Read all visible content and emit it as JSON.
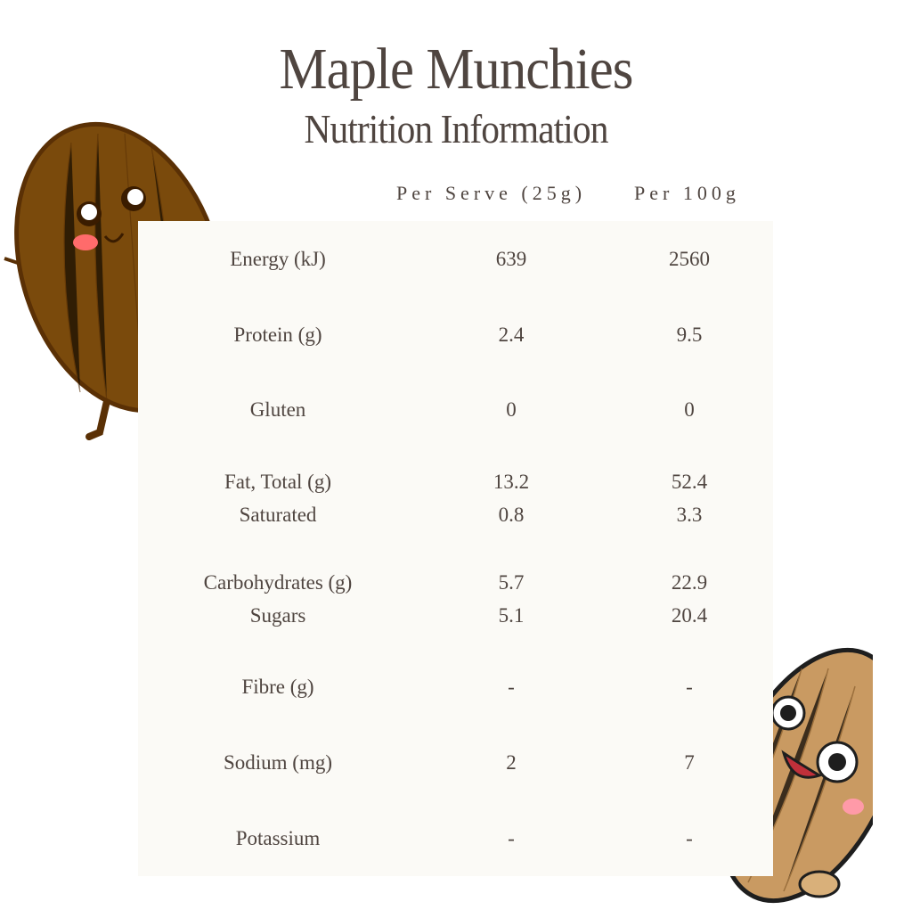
{
  "header": {
    "title": "Maple Munchies",
    "subtitle": "Nutrition Information"
  },
  "columns": {
    "per_serve": "Per Serve (25g)",
    "per_100g": "Per 100g"
  },
  "rows": [
    {
      "label": "Energy (kJ)",
      "per_serve": "639",
      "per_100g": "2560"
    },
    {
      "label": "Protein (g)",
      "per_serve": "2.4",
      "per_100g": "9.5"
    },
    {
      "label": "Gluten",
      "per_serve": "0",
      "per_100g": "0"
    },
    {
      "label": "Fat, Total (g)",
      "per_serve": "13.2",
      "per_100g": "52.4"
    },
    {
      "label": "Saturated",
      "per_serve": "0.8",
      "per_100g": "3.3"
    },
    {
      "label": "Carbohydrates (g)",
      "per_serve": "5.7",
      "per_100g": "22.9"
    },
    {
      "label": "Sugars",
      "per_serve": "5.1",
      "per_100g": "20.4"
    },
    {
      "label": "Fibre (g)",
      "per_serve": "-",
      "per_100g": "-"
    },
    {
      "label": "Sodium (mg)",
      "per_serve": "2",
      "per_100g": "7"
    },
    {
      "label": "Potassium",
      "per_serve": "-",
      "per_100g": "-"
    }
  ],
  "colors": {
    "text": "#4f4540",
    "panel": "#fbfaf6",
    "dark_almond": "#7a4a0c",
    "light_almond": "#c99a62"
  }
}
